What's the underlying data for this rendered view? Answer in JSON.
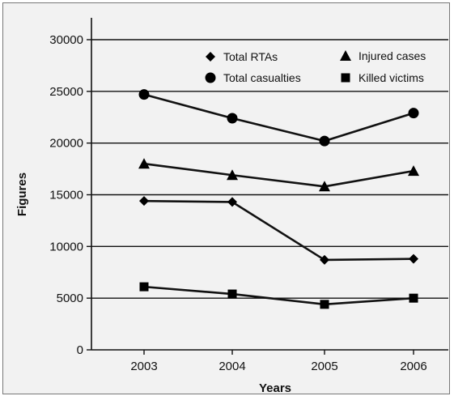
{
  "chart_data": {
    "type": "line",
    "title": "",
    "xlabel": "Years",
    "ylabel": "Figures",
    "categories": [
      "2003",
      "2004",
      "2005",
      "2006"
    ],
    "ylim": [
      0,
      30000
    ],
    "yticks": [
      0,
      5000,
      10000,
      15000,
      20000,
      25000,
      30000
    ],
    "grid": true,
    "legend_position": "top-right",
    "series": [
      {
        "name": "Total RTAs",
        "marker": "diamond",
        "values": [
          14400,
          14300,
          8700,
          8800
        ]
      },
      {
        "name": "Total casualties",
        "marker": "circle",
        "values": [
          24700,
          22400,
          20200,
          22900
        ]
      },
      {
        "name": "Injured cases",
        "marker": "triangle",
        "values": [
          18000,
          16900,
          15800,
          17300
        ]
      },
      {
        "name": "Killed victims",
        "marker": "square",
        "values": [
          6100,
          5400,
          4400,
          5000
        ]
      }
    ],
    "colors": {
      "line": "#111111",
      "grid": "#111111",
      "background": "#f2f2f2"
    }
  }
}
